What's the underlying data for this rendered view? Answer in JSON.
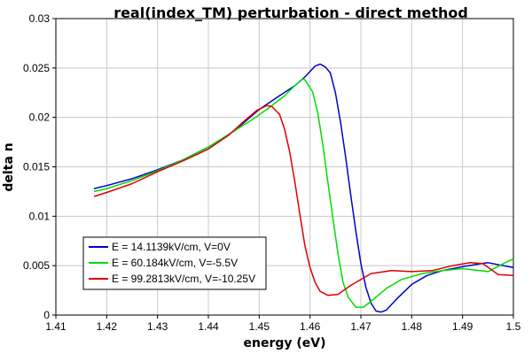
{
  "chart_data": {
    "type": "line",
    "title": "real(index_TM) perturbation - direct method",
    "xlabel": "energy (eV)",
    "ylabel": "delta n",
    "xlim": [
      1.41,
      1.5
    ],
    "ylim": [
      0,
      0.03
    ],
    "xticks": [
      "1.41",
      "1.42",
      "1.43",
      "1.44",
      "1.45",
      "1.46",
      "1.47",
      "1.48",
      "1.49",
      "1.5"
    ],
    "yticks": [
      "0",
      "0.005",
      "0.01",
      "0.015",
      "0.02",
      "0.025",
      "0.03"
    ],
    "grid": true,
    "legend_position": "bottom-left",
    "series": [
      {
        "name": "E = 14.1139kV/cm, V=0V",
        "color": "#0000cc",
        "points": [
          [
            1.4175,
            0.0128
          ],
          [
            1.42,
            0.0131
          ],
          [
            1.425,
            0.0138
          ],
          [
            1.43,
            0.0147
          ],
          [
            1.435,
            0.0157
          ],
          [
            1.44,
            0.017
          ],
          [
            1.445,
            0.0186
          ],
          [
            1.45,
            0.0208
          ],
          [
            1.454,
            0.0222
          ],
          [
            1.457,
            0.0232
          ],
          [
            1.459,
            0.0241
          ],
          [
            1.461,
            0.0252
          ],
          [
            1.462,
            0.0254
          ],
          [
            1.463,
            0.0251
          ],
          [
            1.464,
            0.0245
          ],
          [
            1.465,
            0.0225
          ],
          [
            1.466,
            0.0195
          ],
          [
            1.467,
            0.016
          ],
          [
            1.468,
            0.0122
          ],
          [
            1.469,
            0.0085
          ],
          [
            1.47,
            0.0052
          ],
          [
            1.471,
            0.0028
          ],
          [
            1.472,
            0.0012
          ],
          [
            1.473,
            0.0004
          ],
          [
            1.474,
            0.0003
          ],
          [
            1.475,
            0.0005
          ],
          [
            1.477,
            0.0016
          ],
          [
            1.48,
            0.0031
          ],
          [
            1.483,
            0.004
          ],
          [
            1.486,
            0.0045
          ],
          [
            1.49,
            0.0049
          ],
          [
            1.495,
            0.0053
          ],
          [
            1.5,
            0.0048
          ]
        ]
      },
      {
        "name": "E = 60.184kV/cm, V=-5.5V",
        "color": "#00dd00",
        "points": [
          [
            1.4175,
            0.0125
          ],
          [
            1.42,
            0.0128
          ],
          [
            1.425,
            0.0136
          ],
          [
            1.43,
            0.0146
          ],
          [
            1.435,
            0.0157
          ],
          [
            1.44,
            0.017
          ],
          [
            1.445,
            0.0186
          ],
          [
            1.449,
            0.0199
          ],
          [
            1.452,
            0.021
          ],
          [
            1.455,
            0.0222
          ],
          [
            1.457,
            0.0232
          ],
          [
            1.4585,
            0.0239
          ],
          [
            1.459,
            0.0238
          ],
          [
            1.4605,
            0.0226
          ],
          [
            1.4615,
            0.0205
          ],
          [
            1.4625,
            0.0173
          ],
          [
            1.4635,
            0.0135
          ],
          [
            1.4645,
            0.0098
          ],
          [
            1.4655,
            0.0062
          ],
          [
            1.4665,
            0.0033
          ],
          [
            1.4675,
            0.0018
          ],
          [
            1.469,
            0.0008
          ],
          [
            1.4705,
            0.0008
          ],
          [
            1.4725,
            0.0016
          ],
          [
            1.475,
            0.0027
          ],
          [
            1.478,
            0.0036
          ],
          [
            1.482,
            0.0042
          ],
          [
            1.486,
            0.0045
          ],
          [
            1.49,
            0.0047
          ],
          [
            1.495,
            0.0044
          ],
          [
            1.498,
            0.0052
          ],
          [
            1.5,
            0.0057
          ]
        ]
      },
      {
        "name": "E = 99.2813kV/cm, V=-10.25V",
        "color": "#dd0000",
        "points": [
          [
            1.4175,
            0.012
          ],
          [
            1.42,
            0.0124
          ],
          [
            1.425,
            0.0133
          ],
          [
            1.43,
            0.0145
          ],
          [
            1.435,
            0.0156
          ],
          [
            1.44,
            0.0168
          ],
          [
            1.444,
            0.0182
          ],
          [
            1.447,
            0.0196
          ],
          [
            1.4495,
            0.0207
          ],
          [
            1.4515,
            0.0212
          ],
          [
            1.4525,
            0.0211
          ],
          [
            1.454,
            0.0203
          ],
          [
            1.455,
            0.0188
          ],
          [
            1.456,
            0.0165
          ],
          [
            1.457,
            0.0135
          ],
          [
            1.458,
            0.0102
          ],
          [
            1.459,
            0.007
          ],
          [
            1.46,
            0.0048
          ],
          [
            1.461,
            0.0033
          ],
          [
            1.462,
            0.0024
          ],
          [
            1.4635,
            0.002
          ],
          [
            1.4655,
            0.0021
          ],
          [
            1.468,
            0.003
          ],
          [
            1.472,
            0.0042
          ],
          [
            1.476,
            0.0045
          ],
          [
            1.48,
            0.0044
          ],
          [
            1.484,
            0.0045
          ],
          [
            1.488,
            0.005
          ],
          [
            1.4915,
            0.0053
          ],
          [
            1.494,
            0.0052
          ],
          [
            1.497,
            0.0041
          ],
          [
            1.5,
            0.004
          ]
        ]
      }
    ]
  }
}
